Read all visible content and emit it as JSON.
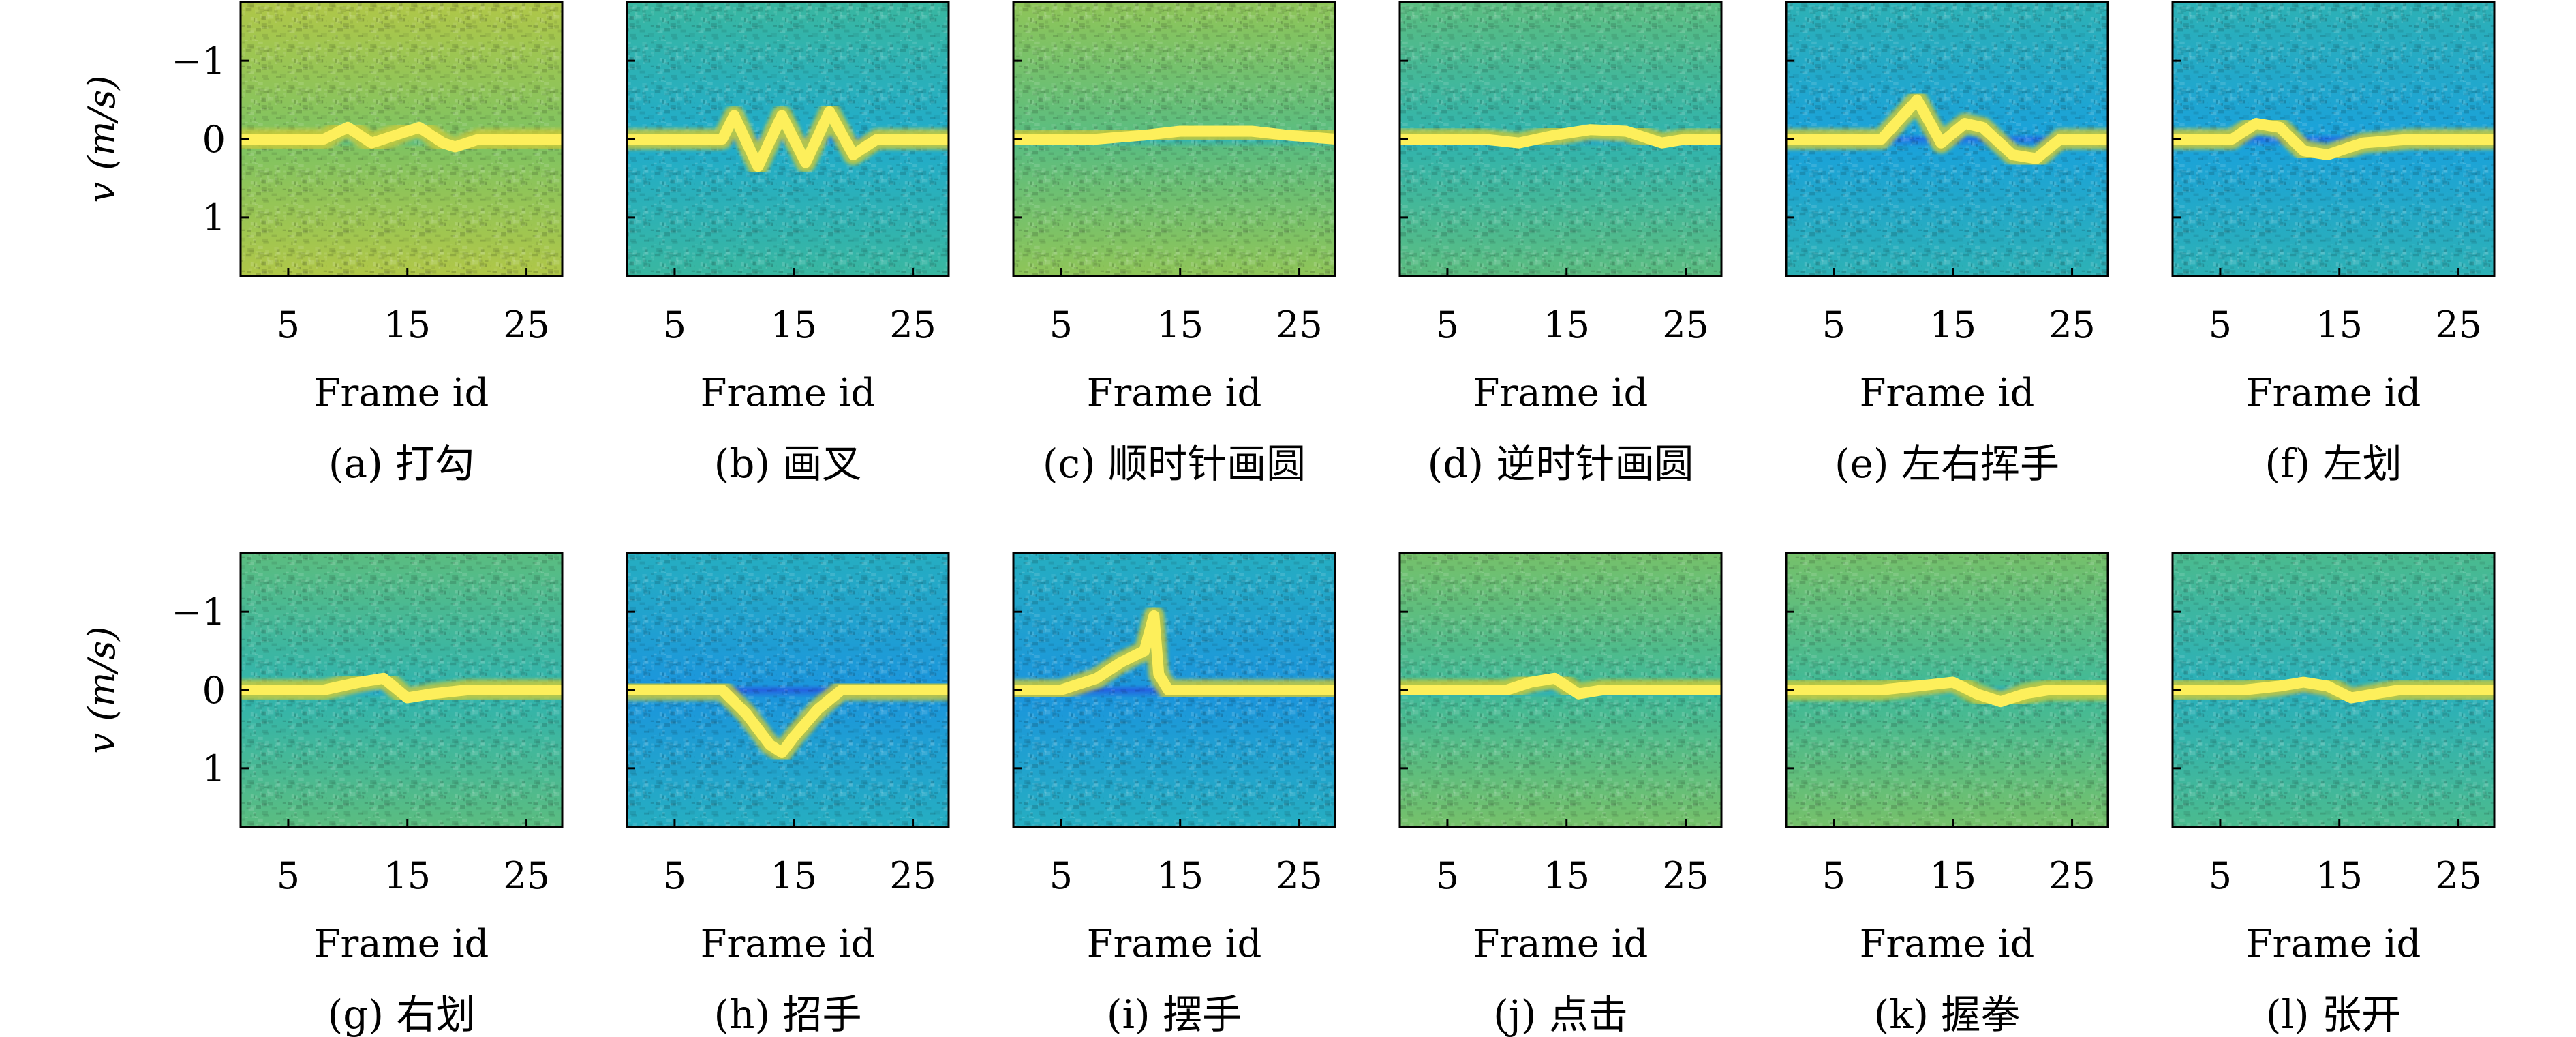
{
  "figure": {
    "colormap": [
      "#3f27c4",
      "#1f6fe6",
      "#19a8d8",
      "#3bb89c",
      "#86c45c",
      "#c9c93b",
      "#f4d730",
      "#fff566"
    ],
    "shared_axes": {
      "xlabel": "Frame id",
      "ylabel": "v (m/s)",
      "xticks": [
        5,
        15,
        25
      ],
      "yticks": [
        -1,
        0,
        1
      ],
      "xlim": [
        1,
        28
      ],
      "ylim": [
        1.75,
        -1.75
      ]
    }
  },
  "chart_data": [
    {
      "type": "heatmap",
      "caption": "(a) 打勾",
      "xlabel": "Frame id",
      "ylabel": "v (m/s)",
      "xticks": [
        5,
        15,
        25
      ],
      "yticks": [
        -1,
        0,
        1
      ],
      "xlim": [
        1,
        28
      ],
      "ylim": [
        1.75,
        -1.75
      ],
      "background_level": 0.62,
      "ridge": [
        [
          1,
          0.0
        ],
        [
          8,
          0.0
        ],
        [
          10,
          -0.15
        ],
        [
          12,
          0.05
        ],
        [
          14,
          -0.05
        ],
        [
          16,
          -0.15
        ],
        [
          18,
          0.05
        ],
        [
          19,
          0.1
        ],
        [
          21,
          0.0
        ],
        [
          28,
          0.0
        ]
      ]
    },
    {
      "type": "heatmap",
      "caption": "(b) 画叉",
      "xlabel": "Frame id",
      "ylabel": "v (m/s)",
      "xticks": [
        5,
        15,
        25
      ],
      "yticks": [
        -1,
        0,
        1
      ],
      "xlim": [
        1,
        28
      ],
      "ylim": [
        1.75,
        -1.75
      ],
      "background_level": 0.38,
      "ridge": [
        [
          1,
          0.0
        ],
        [
          9,
          0.0
        ],
        [
          10,
          -0.3
        ],
        [
          12,
          0.35
        ],
        [
          14,
          -0.3
        ],
        [
          16,
          0.3
        ],
        [
          18,
          -0.35
        ],
        [
          20,
          0.2
        ],
        [
          22,
          0.0
        ],
        [
          28,
          0.0
        ]
      ]
    },
    {
      "type": "heatmap",
      "caption": "(c) 顺时针画圆",
      "xlabel": "Frame id",
      "ylabel": "v (m/s)",
      "xticks": [
        5,
        15,
        25
      ],
      "yticks": [
        -1,
        0,
        1
      ],
      "xlim": [
        1,
        28
      ],
      "ylim": [
        1.75,
        -1.75
      ],
      "background_level": 0.55,
      "ridge": [
        [
          1,
          0.0
        ],
        [
          8,
          0.0
        ],
        [
          12,
          -0.05
        ],
        [
          15,
          -0.1
        ],
        [
          18,
          -0.1
        ],
        [
          21,
          -0.1
        ],
        [
          24,
          -0.05
        ],
        [
          28,
          0.0
        ]
      ]
    },
    {
      "type": "heatmap",
      "caption": "(d) 逆时针画圆",
      "xlabel": "Frame id",
      "ylabel": "v (m/s)",
      "xticks": [
        5,
        15,
        25
      ],
      "yticks": [
        -1,
        0,
        1
      ],
      "xlim": [
        1,
        28
      ],
      "ylim": [
        1.75,
        -1.75
      ],
      "background_level": 0.45,
      "ridge": [
        [
          1,
          0.0
        ],
        [
          8,
          0.0
        ],
        [
          11,
          0.05
        ],
        [
          14,
          -0.05
        ],
        [
          17,
          -0.12
        ],
        [
          20,
          -0.1
        ],
        [
          23,
          0.05
        ],
        [
          25,
          0.0
        ],
        [
          28,
          0.0
        ]
      ]
    },
    {
      "type": "heatmap",
      "caption": "(e) 左右挥手",
      "xlabel": "Frame id",
      "ylabel": "v (m/s)",
      "xticks": [
        5,
        15,
        25
      ],
      "yticks": [
        -1,
        0,
        1
      ],
      "xlim": [
        1,
        28
      ],
      "ylim": [
        1.75,
        -1.75
      ],
      "background_level": 0.33,
      "ridge": [
        [
          1,
          0.0
        ],
        [
          9,
          0.0
        ],
        [
          12,
          -0.5
        ],
        [
          14,
          0.05
        ],
        [
          16,
          -0.2
        ],
        [
          17.5,
          -0.15
        ],
        [
          20,
          0.2
        ],
        [
          22,
          0.25
        ],
        [
          24,
          0.0
        ],
        [
          28,
          0.0
        ]
      ]
    },
    {
      "type": "heatmap",
      "caption": "(f) 左划",
      "xlabel": "Frame id",
      "ylabel": "v (m/s)",
      "xticks": [
        5,
        15,
        25
      ],
      "yticks": [
        -1,
        0,
        1
      ],
      "xlim": [
        1,
        28
      ],
      "ylim": [
        1.75,
        -1.75
      ],
      "background_level": 0.33,
      "ridge": [
        [
          1,
          0.0
        ],
        [
          6,
          0.0
        ],
        [
          8,
          -0.2
        ],
        [
          10,
          -0.15
        ],
        [
          12,
          0.15
        ],
        [
          14,
          0.2
        ],
        [
          17,
          0.05
        ],
        [
          21,
          0.0
        ],
        [
          28,
          0.0
        ]
      ]
    },
    {
      "type": "heatmap",
      "caption": "(g) 右划",
      "xlabel": "Frame id",
      "ylabel": "v (m/s)",
      "xticks": [
        5,
        15,
        25
      ],
      "yticks": [
        -1,
        0,
        1
      ],
      "xlim": [
        1,
        28
      ],
      "ylim": [
        1.75,
        -1.75
      ],
      "background_level": 0.45,
      "ridge": [
        [
          1,
          0.0
        ],
        [
          8,
          0.0
        ],
        [
          11,
          -0.1
        ],
        [
          13,
          -0.15
        ],
        [
          15,
          0.1
        ],
        [
          17,
          0.05
        ],
        [
          20,
          0.0
        ],
        [
          28,
          0.0
        ]
      ]
    },
    {
      "type": "heatmap",
      "caption": "(h) 招手",
      "xlabel": "Frame id",
      "ylabel": "v (m/s)",
      "xticks": [
        5,
        15,
        25
      ],
      "yticks": [
        -1,
        0,
        1
      ],
      "xlim": [
        1,
        28
      ],
      "ylim": [
        1.75,
        -1.75
      ],
      "background_level": 0.3,
      "ridge": [
        [
          1,
          0.0
        ],
        [
          9,
          0.0
        ],
        [
          11,
          0.3
        ],
        [
          13,
          0.7
        ],
        [
          14,
          0.8
        ],
        [
          15,
          0.6
        ],
        [
          17,
          0.25
        ],
        [
          19,
          0.0
        ],
        [
          28,
          0.0
        ]
      ]
    },
    {
      "type": "heatmap",
      "caption": "(i) 摆手",
      "xlabel": "Frame id",
      "ylabel": "v (m/s)",
      "xticks": [
        5,
        15,
        25
      ],
      "yticks": [
        -1,
        0,
        1
      ],
      "xlim": [
        1,
        28
      ],
      "ylim": [
        1.75,
        -1.75
      ],
      "background_level": 0.3,
      "ridge": [
        [
          1,
          0.0
        ],
        [
          5,
          0.0
        ],
        [
          8,
          -0.15
        ],
        [
          10,
          -0.35
        ],
        [
          12,
          -0.5
        ],
        [
          12.8,
          -0.95
        ],
        [
          13.2,
          -0.2
        ],
        [
          14,
          0.0
        ],
        [
          28,
          0.0
        ]
      ]
    },
    {
      "type": "heatmap",
      "caption": "(j) 点击",
      "xlabel": "Frame id",
      "ylabel": "v (m/s)",
      "xticks": [
        5,
        15,
        25
      ],
      "yticks": [
        -1,
        0,
        1
      ],
      "xlim": [
        1,
        28
      ],
      "ylim": [
        1.75,
        -1.75
      ],
      "background_level": 0.5,
      "ridge": [
        [
          1,
          0.0
        ],
        [
          10,
          0.0
        ],
        [
          12,
          -0.1
        ],
        [
          14,
          -0.15
        ],
        [
          16,
          0.05
        ],
        [
          18,
          0.0
        ],
        [
          28,
          0.0
        ]
      ]
    },
    {
      "type": "heatmap",
      "caption": "(k) 握拳",
      "xlabel": "Frame id",
      "ylabel": "v (m/s)",
      "xticks": [
        5,
        15,
        25
      ],
      "yticks": [
        -1,
        0,
        1
      ],
      "xlim": [
        1,
        28
      ],
      "ylim": [
        1.75,
        -1.75
      ],
      "background_level": 0.5,
      "ridge": [
        [
          1,
          0.0
        ],
        [
          9,
          0.0
        ],
        [
          12,
          -0.05
        ],
        [
          15,
          -0.1
        ],
        [
          17,
          0.05
        ],
        [
          19,
          0.15
        ],
        [
          21,
          0.05
        ],
        [
          23,
          0.0
        ],
        [
          28,
          0.0
        ]
      ]
    },
    {
      "type": "heatmap",
      "caption": "(l) 张开",
      "xlabel": "Frame id",
      "ylabel": "v (m/s)",
      "xticks": [
        5,
        15,
        25
      ],
      "yticks": [
        -1,
        0,
        1
      ],
      "xlim": [
        1,
        28
      ],
      "ylim": [
        1.75,
        -1.75
      ],
      "background_level": 0.42,
      "ridge": [
        [
          1,
          0.0
        ],
        [
          7,
          0.0
        ],
        [
          10,
          -0.05
        ],
        [
          12,
          -0.1
        ],
        [
          14,
          -0.05
        ],
        [
          16,
          0.1
        ],
        [
          18,
          0.05
        ],
        [
          20,
          0.0
        ],
        [
          28,
          0.0
        ]
      ]
    }
  ]
}
